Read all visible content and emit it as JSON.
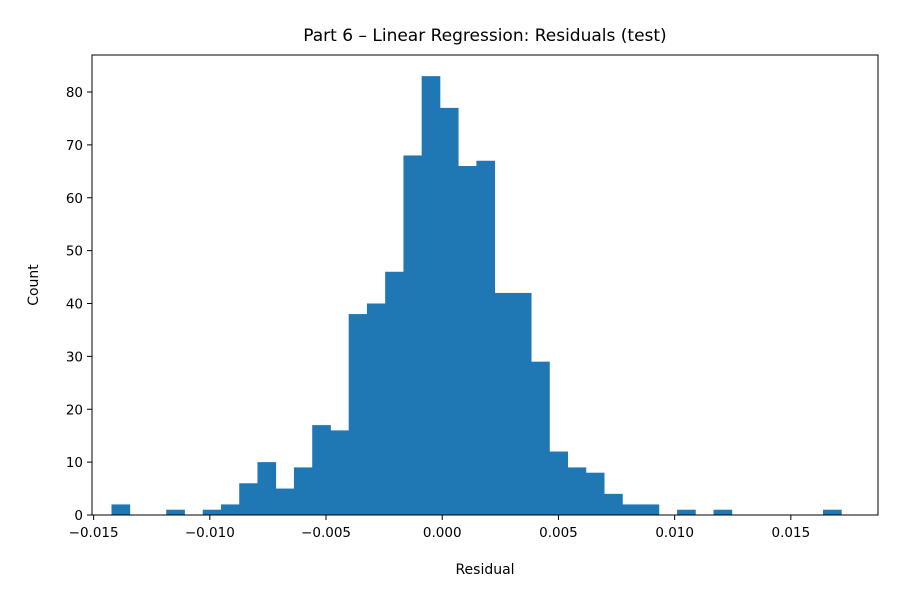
{
  "chart_data": {
    "type": "bar",
    "title": "Part 6 – Linear Regression: Residuals (test)",
    "xlabel": "Residual",
    "ylabel": "Count",
    "xlim": [
      -0.01507,
      0.01875
    ],
    "ylim": [
      0,
      87
    ],
    "x_ticks": [
      -0.015,
      -0.01,
      -0.005,
      0.0,
      0.005,
      0.01,
      0.015
    ],
    "x_tick_labels": [
      "−0.015",
      "−0.010",
      "−0.005",
      "0.000",
      "0.005",
      "0.010",
      "0.015"
    ],
    "y_ticks": [
      0,
      10,
      20,
      30,
      40,
      50,
      60,
      70,
      80
    ],
    "y_tick_labels": [
      "0",
      "10",
      "20",
      "30",
      "40",
      "50",
      "60",
      "70",
      "80"
    ],
    "bin_width": 0.000785,
    "bin_starts": [
      -0.01423,
      -0.013445,
      -0.01266,
      -0.011875,
      -0.01109,
      -0.010305,
      -0.00952,
      -0.008735,
      -0.00795,
      -0.007165,
      -0.00638,
      -0.005595,
      -0.00481,
      -0.004025,
      -0.00324,
      -0.002455,
      -0.00167,
      -0.000885,
      -0.0001,
      0.000685,
      0.00147,
      0.002255,
      0.00304,
      0.003825,
      0.00461,
      0.005395,
      0.00618,
      0.006965,
      0.00775,
      0.008535,
      0.00932,
      0.010105,
      0.01089,
      0.011675,
      0.01246,
      0.013245,
      0.01403,
      0.014815,
      0.0156,
      0.016385
    ],
    "values": [
      2,
      0,
      0,
      1,
      0,
      1,
      2,
      6,
      10,
      5,
      9,
      17,
      16,
      38,
      40,
      46,
      68,
      83,
      77,
      66,
      67,
      42,
      42,
      29,
      12,
      9,
      8,
      4,
      2,
      2,
      0,
      1,
      0,
      1,
      0,
      0,
      0,
      0,
      0,
      1
    ],
    "grid": false,
    "colors": {
      "bar": "#1f77b4",
      "axes": "#000000",
      "background": "#ffffff"
    }
  }
}
